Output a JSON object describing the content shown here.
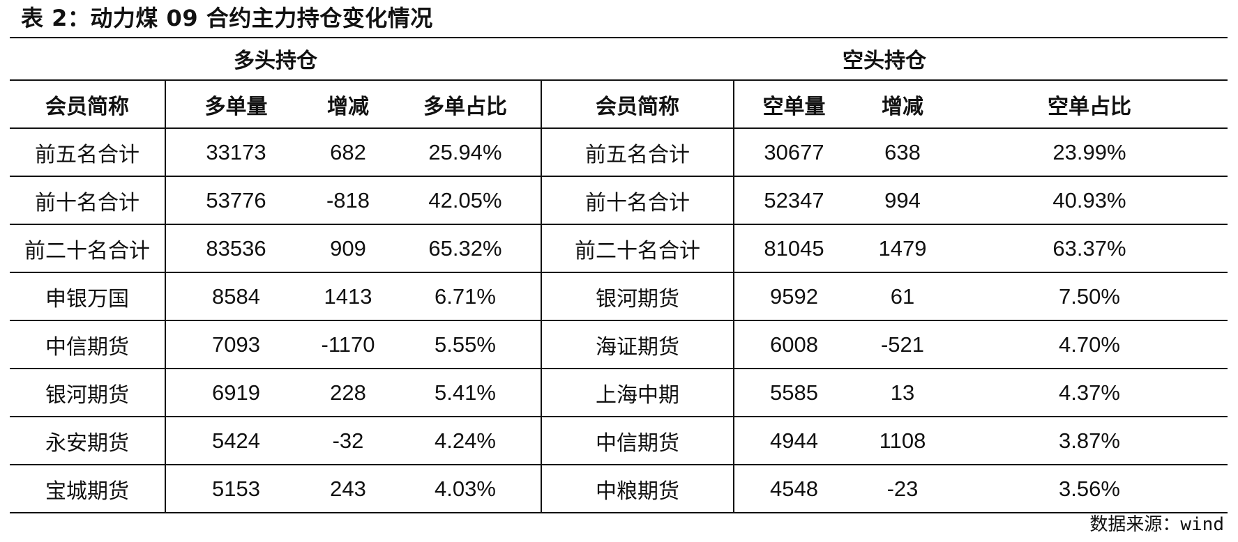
{
  "title": "表 2：动力煤 09 合约主力持仓变化情况",
  "groups": {
    "long": "多头持仓",
    "short": "空头持仓"
  },
  "headers": {
    "long": [
      "会员简称",
      "多单量",
      "增减",
      "多单占比"
    ],
    "short": [
      "会员简称",
      "空单量",
      "增减",
      "空单占比"
    ]
  },
  "rows": [
    {
      "long": [
        "前五名合计",
        "33173",
        "682",
        "25.94%"
      ],
      "short": [
        "前五名合计",
        "30677",
        "638",
        "23.99%"
      ]
    },
    {
      "long": [
        "前十名合计",
        "53776",
        "-818",
        "42.05%"
      ],
      "short": [
        "前十名合计",
        "52347",
        "994",
        "40.93%"
      ]
    },
    {
      "long": [
        "前二十名合计",
        "83536",
        "909",
        "65.32%"
      ],
      "short": [
        "前二十名合计",
        "81045",
        "1479",
        "63.37%"
      ]
    },
    {
      "long": [
        "申银万国",
        "8584",
        "1413",
        "6.71%"
      ],
      "short": [
        "银河期货",
        "9592",
        "61",
        "7.50%"
      ]
    },
    {
      "long": [
        "中信期货",
        "7093",
        "-1170",
        "5.55%"
      ],
      "short": [
        "海证期货",
        "6008",
        "-521",
        "4.70%"
      ]
    },
    {
      "long": [
        "银河期货",
        "6919",
        "228",
        "5.41%"
      ],
      "short": [
        "上海中期",
        "5585",
        "13",
        "4.37%"
      ]
    },
    {
      "long": [
        "永安期货",
        "5424",
        "-32",
        "4.24%"
      ],
      "short": [
        "中信期货",
        "4944",
        "1108",
        "3.87%"
      ]
    },
    {
      "long": [
        "宝城期货",
        "5153",
        "243",
        "4.03%"
      ],
      "short": [
        "中粮期货",
        "4548",
        "-23",
        "3.56%"
      ]
    }
  ],
  "source": {
    "label": "数据来源：",
    "value": "wind"
  }
}
